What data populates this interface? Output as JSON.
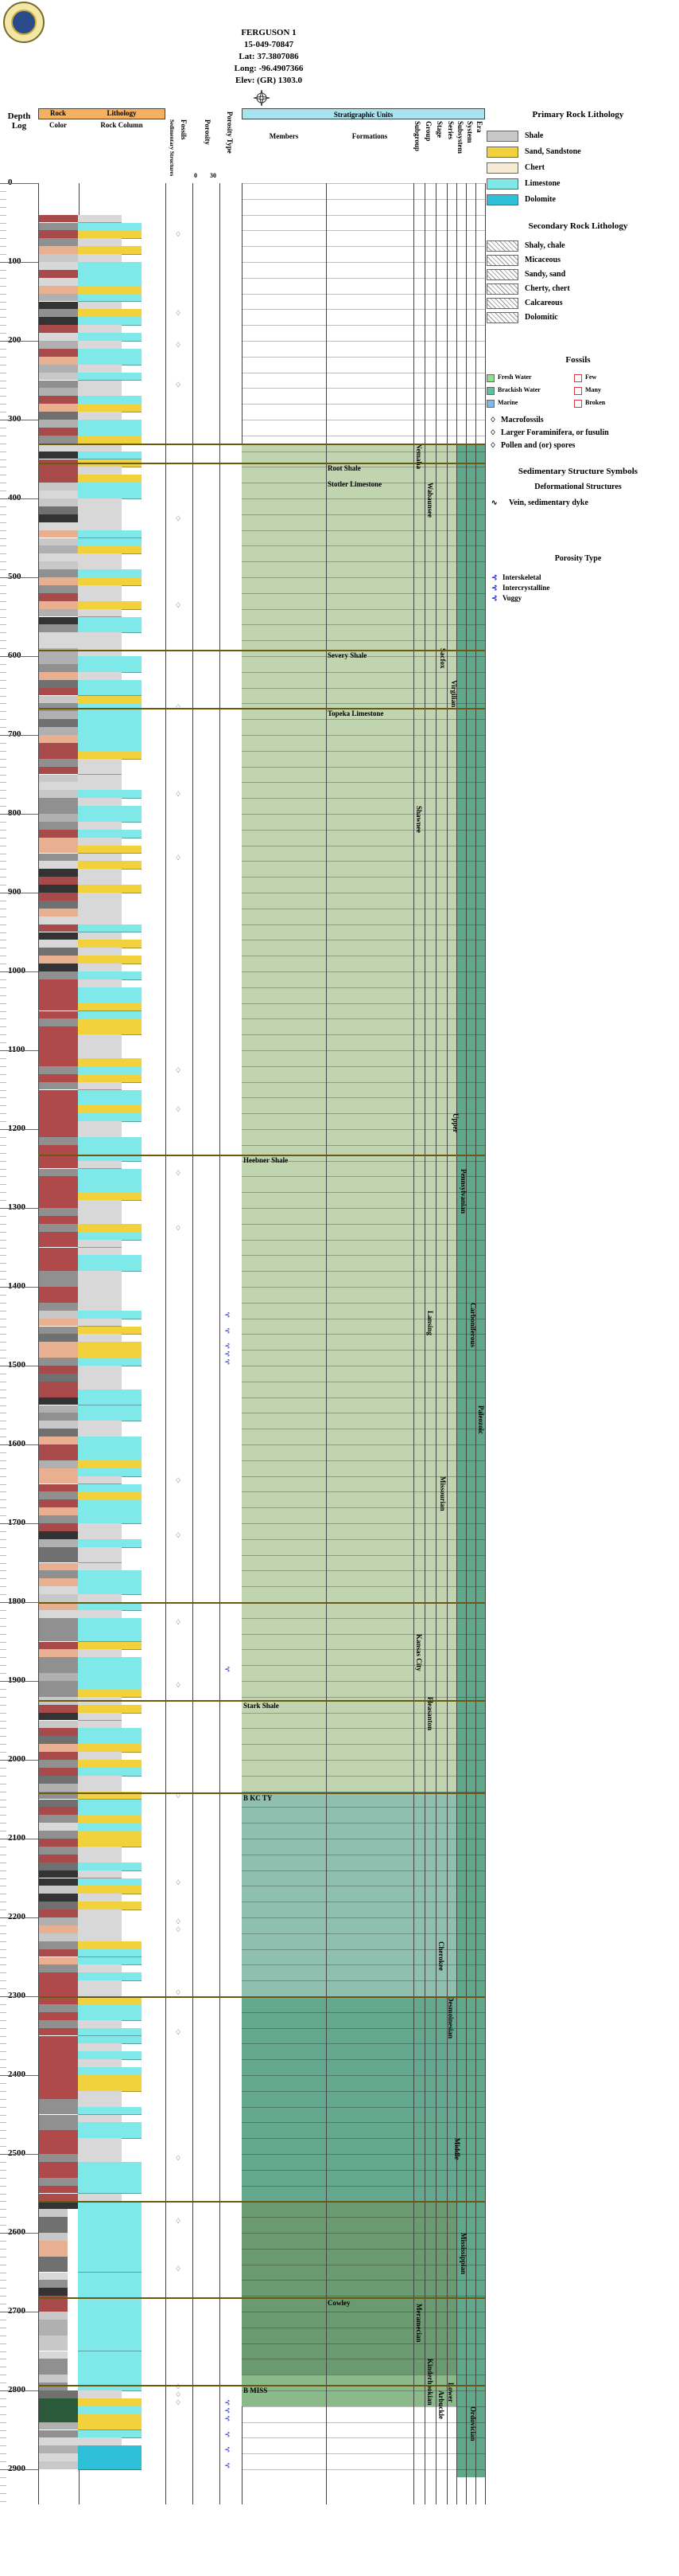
{
  "well": {
    "name": "FERGUSON 1",
    "api": "15-049-70847",
    "lat": "Lat: 37.3807086",
    "long": "Long: -96.4907366",
    "elev": "Elev: (GR) 1303.0"
  },
  "headers": {
    "depth": "Depth",
    "log": "Log",
    "rock_color_title": "Rock",
    "color": "Color",
    "lithology": "Lithology",
    "rock_column": "Rock Column",
    "sed_structures": "Sedimentary Structures",
    "fossils": "Fossils",
    "porosity": "Porosity",
    "porosity_type": "Porosity Type",
    "poro_scale_0": "0",
    "poro_scale_30": "30",
    "strat_units": "Stratigraphic Units",
    "members": "Members",
    "formations": "Formations",
    "subgroup": "Subgroup",
    "group": "Group",
    "stage": "Stage",
    "series": "Series",
    "subsystem": "Subsystem",
    "system": "System",
    "era": "Era"
  },
  "depth_ticks": [
    "0",
    "100",
    "200",
    "300",
    "400",
    "500",
    "600",
    "700",
    "800",
    "900",
    "1000",
    "1100",
    "1200",
    "1300",
    "1400",
    "1500",
    "1600",
    "1700",
    "1800",
    "1900",
    "2000",
    "2100",
    "2200",
    "2300",
    "2400",
    "2500",
    "2600",
    "2700",
    "2800",
    "2900"
  ],
  "strat": {
    "members": [
      {
        "label": "Heebner Shale",
        "depth": 1232
      },
      {
        "label": "Stark Shale",
        "depth": 1924
      },
      {
        "label": "B KC TY",
        "depth": 2041
      },
      {
        "label": "B MISS",
        "depth": 2793
      }
    ],
    "formations": [
      {
        "label": "Root Shale",
        "depth": 355
      },
      {
        "label": "Stotler Limestone",
        "depth": 375
      },
      {
        "label": "Severy Shale",
        "depth": 592
      },
      {
        "label": "Topeka Limestone",
        "depth": 666
      },
      {
        "label": "Cowley",
        "depth": 2682
      }
    ],
    "subgroups": [
      {
        "label": "Nemaha",
        "from": 330,
        "to": 520
      },
      {
        "label": "Wabaunsee",
        "from": 380,
        "to": 590
      },
      {
        "label": "Sacfox",
        "from": 590,
        "to": 700
      },
      {
        "label": "Virgilian",
        "from": 630,
        "to": 800
      },
      {
        "label": "Shawnee",
        "from": 790,
        "to": 900
      },
      {
        "label": "Lansing",
        "from": 1430,
        "to": 1640
      },
      {
        "label": "Missourian",
        "from": 1640,
        "to": 1760
      },
      {
        "label": "Kansas City",
        "from": 1840,
        "to": 1980
      },
      {
        "label": "Pleasanton",
        "from": 1920,
        "to": 1990
      },
      {
        "label": "Cherokee",
        "from": 2230,
        "to": 2300
      },
      {
        "label": "Desmoinesian",
        "from": 2300,
        "to": 2440
      },
      {
        "label": "Meramecian",
        "from": 2690,
        "to": 2760
      },
      {
        "label": "Kinderhookian",
        "from": 2760,
        "to": 2800
      },
      {
        "label": "Arbuckle",
        "from": 2800,
        "to": 2910
      },
      {
        "label": "Lower",
        "from": 2790,
        "to": 2800
      },
      {
        "label": "Middle",
        "from": 2480,
        "to": 2520
      }
    ],
    "systems": [
      {
        "label": "Upper",
        "from": 1180,
        "to": 1260
      },
      {
        "label": "Pennsylvanian",
        "from": 1250,
        "to": 1340
      },
      {
        "label": "Carboniferous",
        "from": 1420,
        "to": 1560
      },
      {
        "label": "Paleozoic",
        "from": 1550,
        "to": 1630
      },
      {
        "label": "Mississippian",
        "from": 2600,
        "to": 2690
      },
      {
        "label": "Ordovician",
        "from": 2820,
        "to": 2900
      }
    ]
  },
  "legend": {
    "primary_title": "Primary Rock Lithology",
    "primary": [
      {
        "label": "Shale",
        "color": "#c8c8c8"
      },
      {
        "label": "Sand, Sandstone",
        "color": "#f2d23c"
      },
      {
        "label": "Chert",
        "color": "#f6ead2"
      },
      {
        "label": "Limestone",
        "color": "#7fe8e8"
      },
      {
        "label": "Dolomite",
        "color": "#2ec0d8"
      }
    ],
    "secondary_title": "Secondary Rock Lithology",
    "secondary": [
      {
        "label": "Shaly, chale"
      },
      {
        "label": "Micaceous"
      },
      {
        "label": "Sandy, sand"
      },
      {
        "label": "Cherty, chert"
      },
      {
        "label": "Calcareous"
      },
      {
        "label": "Dolomitic"
      }
    ],
    "fossils_title": "Fossils",
    "fossil_env": [
      {
        "label": "Fresh Water",
        "color": "#8ee08e"
      },
      {
        "label": "Brackish Water",
        "color": "#5ec0a0"
      },
      {
        "label": "Marine",
        "color": "#7fb8e8"
      }
    ],
    "fossil_abund": [
      {
        "label": "Few",
        "color": "#d83a3a"
      },
      {
        "label": "Many",
        "color": "#d83a3a"
      },
      {
        "label": "Broken",
        "color": "#d83a3a"
      }
    ],
    "fossil_types": [
      {
        "label": "Macrofossils"
      },
      {
        "label": "Larger Foraminifera, or fusulin"
      },
      {
        "label": "Pollen and (or) spores"
      }
    ],
    "sed_title": "Sedimentary Structure Symbols",
    "deform_title": "Deformational Structures",
    "deform": [
      {
        "label": "Vein, sedimentary dyke"
      }
    ],
    "porosity_title": "Porosity Type",
    "porosity": [
      {
        "label": "Interskeletal"
      },
      {
        "label": "Intercrystalline"
      },
      {
        "label": "Vuggy"
      }
    ]
  },
  "colors": {
    "strat_upper": "#c0d4b0",
    "strat_middle": "#8fbfae",
    "strat_desmoinesian": "#64a890",
    "strat_miss": "#6a9a70",
    "strat_ord": "#8aba8a",
    "system_bar": "#5fa88a",
    "header_lith": "#f5b060",
    "header_strat": "#a8e4f0",
    "unit_line": "#6a5a10"
  }
}
